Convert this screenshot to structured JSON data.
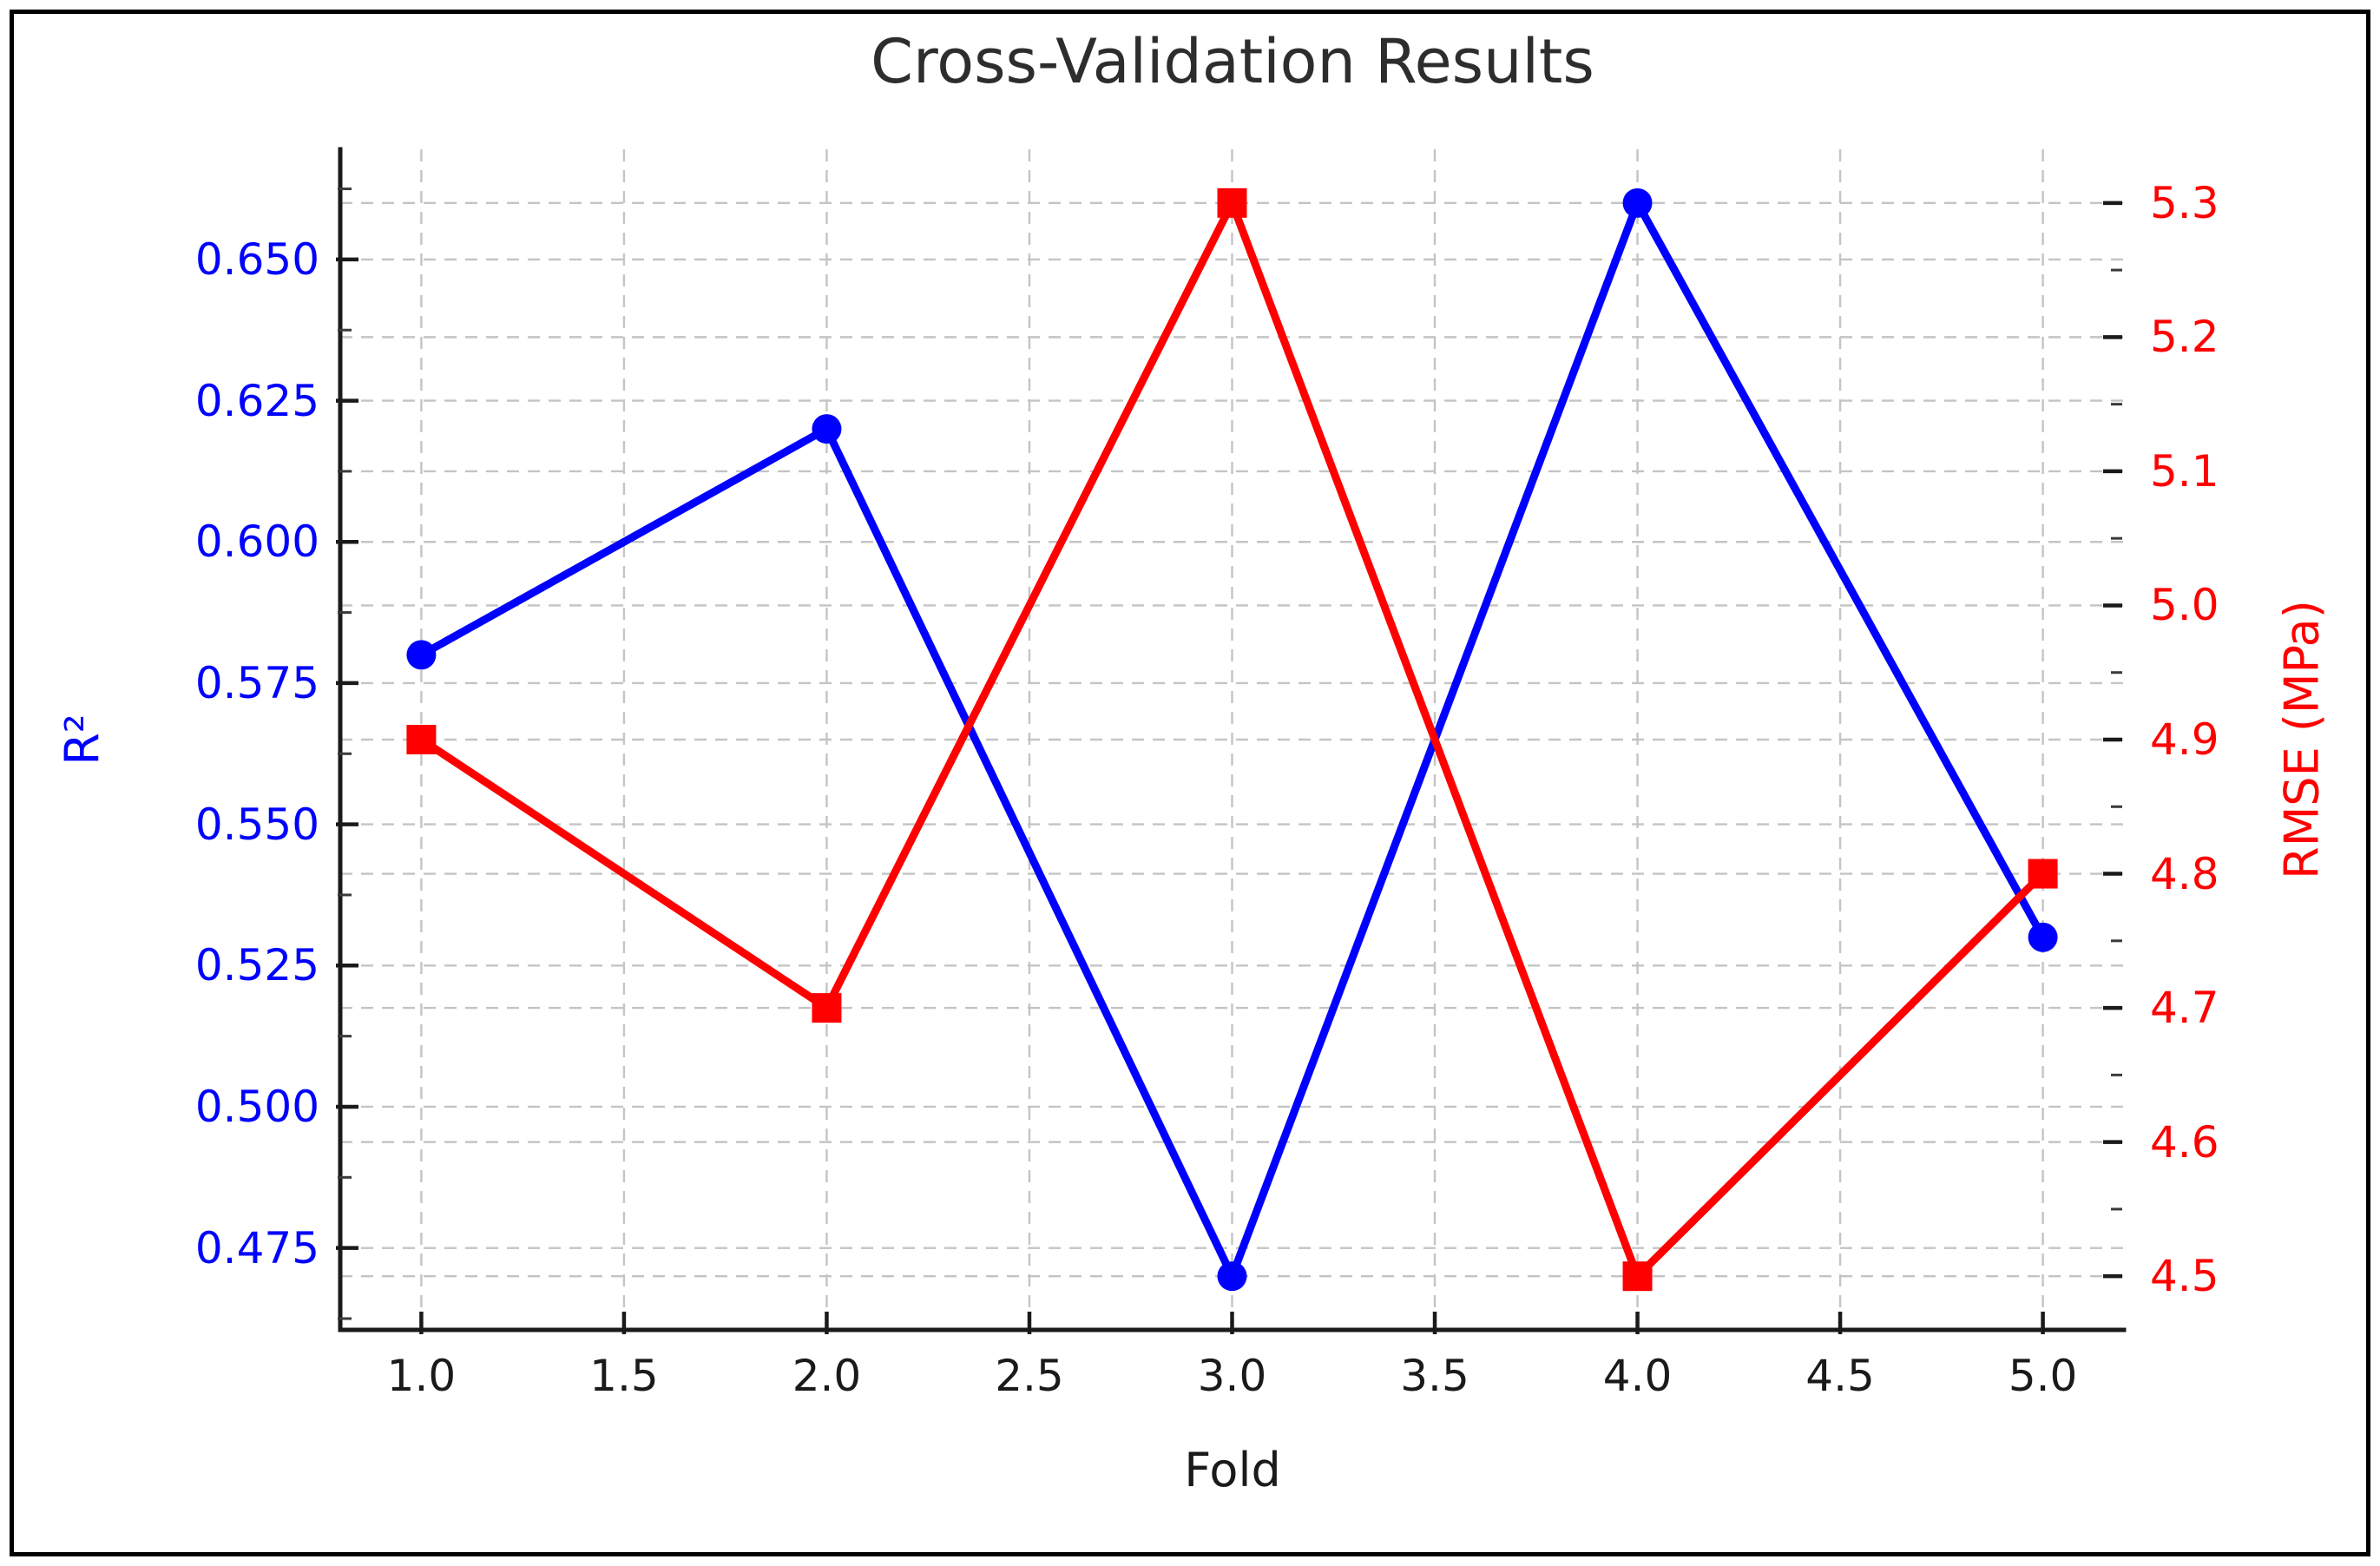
{
  "figure": {
    "background": "#ffffff",
    "border_color": "#000000"
  },
  "chart_data": {
    "type": "line",
    "title": "Cross-Validation Results",
    "xlabel": "Fold",
    "legend": "none",
    "grid": {
      "visible": true,
      "style": "dashed",
      "color": "#c4c4c4"
    },
    "x": [
      1,
      2,
      3,
      4,
      5
    ],
    "x_axis": {
      "label": "Fold",
      "lim": [
        0.8,
        5.2
      ],
      "ticks": [
        1.0,
        1.5,
        2.0,
        2.5,
        3.0,
        3.5,
        4.0,
        4.5,
        5.0
      ],
      "tick_labels": [
        "1.0",
        "1.5",
        "2.0",
        "2.5",
        "3.0",
        "3.5",
        "4.0",
        "4.5",
        "5.0"
      ]
    },
    "left_axis": {
      "label": "R²",
      "color": "#0000ff",
      "lim": [
        0.4605,
        0.6695
      ],
      "ticks": [
        0.475,
        0.5,
        0.525,
        0.55,
        0.575,
        0.6,
        0.625,
        0.65
      ],
      "tick_labels": [
        "0.475",
        "0.500",
        "0.525",
        "0.550",
        "0.575",
        "0.600",
        "0.625",
        "0.650"
      ],
      "minor_ticks": [
        0.4625,
        0.4875,
        0.5125,
        0.5375,
        0.5625,
        0.5875,
        0.6125,
        0.6375,
        0.6625
      ]
    },
    "right_axis": {
      "label": "RMSE (MPa)",
      "color": "#ff0000",
      "lim": [
        4.46,
        5.34
      ],
      "ticks": [
        4.5,
        4.6,
        4.7,
        4.8,
        4.9,
        5.0,
        5.1,
        5.2,
        5.3
      ],
      "tick_labels": [
        "4.5",
        "4.6",
        "4.7",
        "4.8",
        "4.9",
        "5.0",
        "5.1",
        "5.2",
        "5.3"
      ],
      "minor_ticks": [
        4.55,
        4.65,
        4.75,
        4.85,
        4.95,
        5.05,
        5.15,
        5.25
      ]
    },
    "series": [
      {
        "name": "R²",
        "axis": "left",
        "marker": "circle",
        "color": "#0000ff",
        "values": [
          0.58,
          0.62,
          0.47,
          0.66,
          0.53
        ]
      },
      {
        "name": "RMSE (MPa)",
        "axis": "right",
        "marker": "square",
        "color": "#ff0000",
        "values": [
          4.9,
          4.7,
          5.3,
          4.5,
          4.8
        ]
      }
    ]
  }
}
